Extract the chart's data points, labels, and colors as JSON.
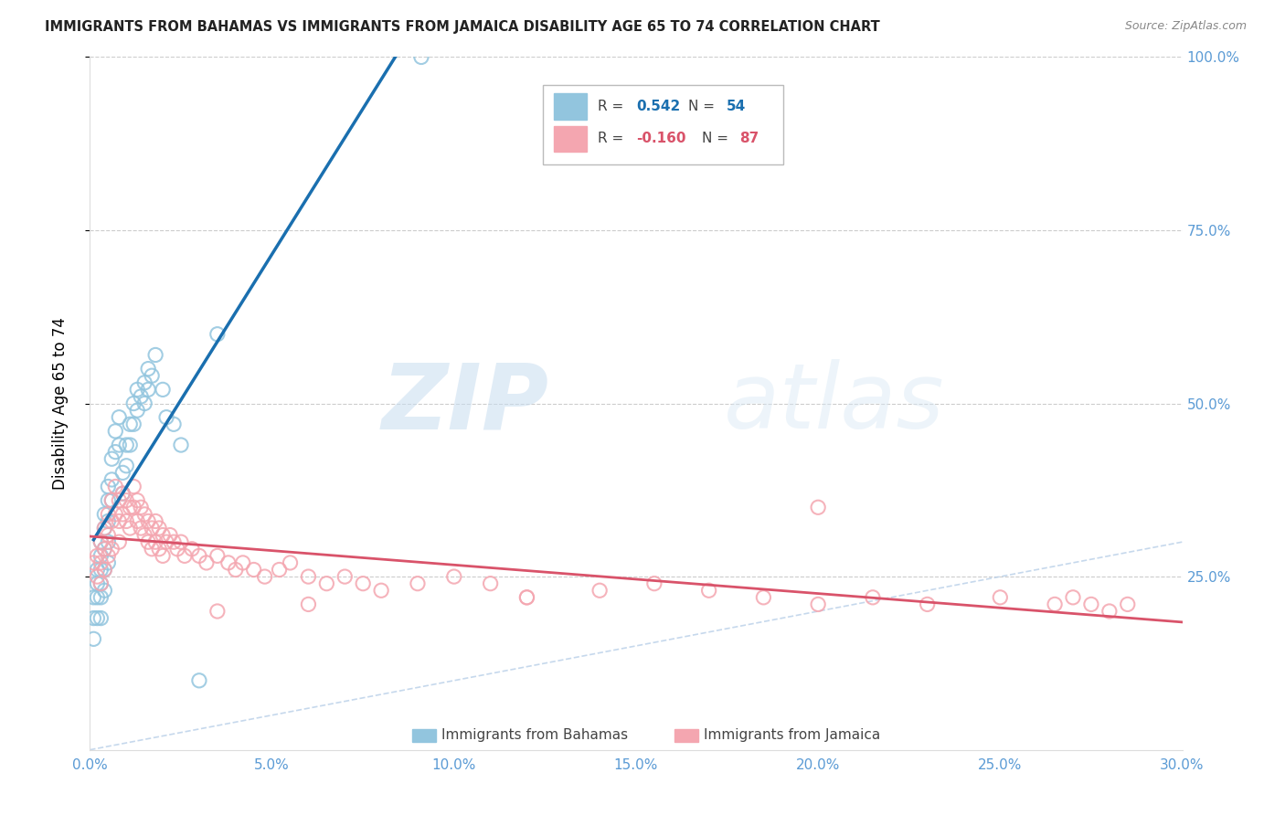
{
  "title": "IMMIGRANTS FROM BAHAMAS VS IMMIGRANTS FROM JAMAICA DISABILITY AGE 65 TO 74 CORRELATION CHART",
  "source": "Source: ZipAtlas.com",
  "ylabel": "Disability Age 65 to 74",
  "xlim": [
    0.0,
    0.3
  ],
  "ylim": [
    0.0,
    1.0
  ],
  "xtick_labels": [
    "0.0%",
    "5.0%",
    "10.0%",
    "15.0%",
    "20.0%",
    "25.0%",
    "30.0%"
  ],
  "xtick_vals": [
    0.0,
    0.05,
    0.1,
    0.15,
    0.2,
    0.25,
    0.3
  ],
  "ytick_labels": [
    "25.0%",
    "50.0%",
    "75.0%",
    "100.0%"
  ],
  "ytick_vals": [
    0.25,
    0.5,
    0.75,
    1.0
  ],
  "r_bahamas": "0.542",
  "n_bahamas": "54",
  "r_jamaica": "-0.160",
  "n_jamaica": "87",
  "color_bahamas": "#92c5de",
  "color_jamaica": "#f4a6b0",
  "color_line_bahamas": "#1a6faf",
  "color_line_jamaica": "#d9536a",
  "color_diag": "#b8cfe8",
  "watermark_zip": "ZIP",
  "watermark_atlas": "atlas",
  "bahamas_x": [
    0.001,
    0.001,
    0.001,
    0.002,
    0.002,
    0.002,
    0.002,
    0.003,
    0.003,
    0.003,
    0.003,
    0.003,
    0.003,
    0.004,
    0.004,
    0.004,
    0.004,
    0.004,
    0.005,
    0.005,
    0.005,
    0.005,
    0.005,
    0.006,
    0.006,
    0.006,
    0.007,
    0.007,
    0.008,
    0.008,
    0.009,
    0.009,
    0.01,
    0.01,
    0.011,
    0.011,
    0.012,
    0.012,
    0.013,
    0.013,
    0.014,
    0.015,
    0.015,
    0.016,
    0.016,
    0.017,
    0.018,
    0.02,
    0.021,
    0.023,
    0.025,
    0.03,
    0.035,
    0.091
  ],
  "bahamas_y": [
    0.22,
    0.19,
    0.16,
    0.26,
    0.24,
    0.22,
    0.19,
    0.3,
    0.28,
    0.26,
    0.24,
    0.22,
    0.19,
    0.34,
    0.32,
    0.29,
    0.26,
    0.23,
    0.38,
    0.36,
    0.33,
    0.3,
    0.27,
    0.42,
    0.39,
    0.36,
    0.46,
    0.43,
    0.48,
    0.44,
    0.4,
    0.37,
    0.44,
    0.41,
    0.47,
    0.44,
    0.5,
    0.47,
    0.52,
    0.49,
    0.51,
    0.53,
    0.5,
    0.55,
    0.52,
    0.54,
    0.57,
    0.52,
    0.48,
    0.47,
    0.44,
    0.1,
    0.6,
    1.0
  ],
  "jamaica_x": [
    0.001,
    0.002,
    0.002,
    0.003,
    0.003,
    0.003,
    0.004,
    0.004,
    0.004,
    0.005,
    0.005,
    0.005,
    0.006,
    0.006,
    0.006,
    0.007,
    0.007,
    0.008,
    0.008,
    0.008,
    0.009,
    0.009,
    0.01,
    0.01,
    0.011,
    0.011,
    0.012,
    0.012,
    0.013,
    0.013,
    0.014,
    0.014,
    0.015,
    0.015,
    0.016,
    0.016,
    0.017,
    0.017,
    0.018,
    0.018,
    0.019,
    0.019,
    0.02,
    0.02,
    0.021,
    0.022,
    0.023,
    0.024,
    0.025,
    0.026,
    0.028,
    0.03,
    0.032,
    0.035,
    0.038,
    0.04,
    0.042,
    0.045,
    0.048,
    0.052,
    0.055,
    0.06,
    0.065,
    0.07,
    0.075,
    0.08,
    0.09,
    0.1,
    0.11,
    0.12,
    0.14,
    0.155,
    0.17,
    0.185,
    0.2,
    0.215,
    0.23,
    0.25,
    0.265,
    0.27,
    0.275,
    0.28,
    0.285,
    0.2,
    0.12,
    0.06,
    0.035
  ],
  "jamaica_y": [
    0.27,
    0.28,
    0.25,
    0.3,
    0.27,
    0.24,
    0.32,
    0.29,
    0.26,
    0.34,
    0.31,
    0.28,
    0.36,
    0.33,
    0.29,
    0.38,
    0.34,
    0.36,
    0.33,
    0.3,
    0.37,
    0.34,
    0.36,
    0.33,
    0.35,
    0.32,
    0.38,
    0.35,
    0.36,
    0.33,
    0.35,
    0.32,
    0.34,
    0.31,
    0.33,
    0.3,
    0.32,
    0.29,
    0.33,
    0.3,
    0.32,
    0.29,
    0.31,
    0.28,
    0.3,
    0.31,
    0.3,
    0.29,
    0.3,
    0.28,
    0.29,
    0.28,
    0.27,
    0.28,
    0.27,
    0.26,
    0.27,
    0.26,
    0.25,
    0.26,
    0.27,
    0.25,
    0.24,
    0.25,
    0.24,
    0.23,
    0.24,
    0.25,
    0.24,
    0.22,
    0.23,
    0.24,
    0.23,
    0.22,
    0.21,
    0.22,
    0.21,
    0.22,
    0.21,
    0.22,
    0.21,
    0.2,
    0.21,
    0.35,
    0.22,
    0.21,
    0.2
  ]
}
